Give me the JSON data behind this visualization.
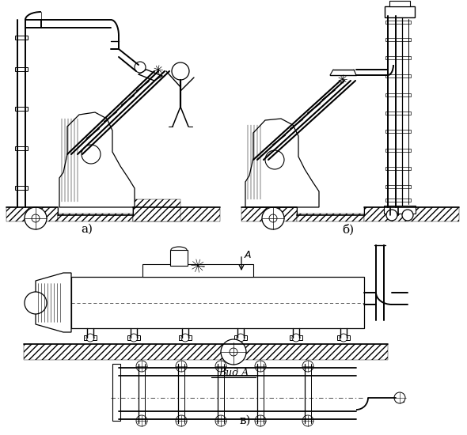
{
  "bg_color": "#ffffff",
  "line_color": "#000000",
  "label_a": "а)",
  "label_b": "б)",
  "label_c": "в)",
  "label_vid": "Вид А",
  "arrow_label": "A",
  "fig_width": 5.9,
  "fig_height": 5.5,
  "dpi": 100
}
